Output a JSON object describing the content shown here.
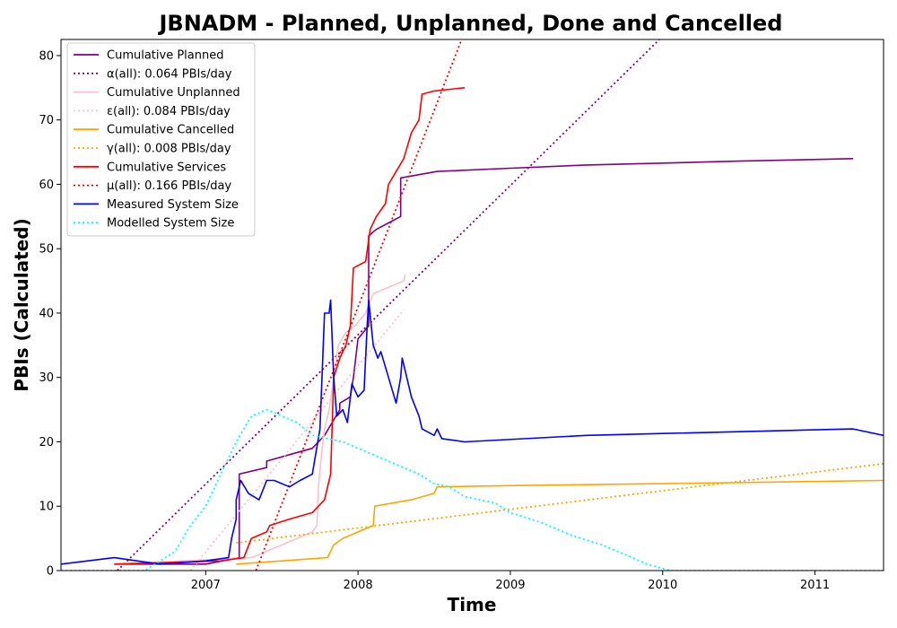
{
  "chart_data": {
    "type": "line",
    "title": "JBNADM - Planned, Unplanned, Done  and Cancelled",
    "xlabel": "Time",
    "ylabel": "PBIs (Calculated)",
    "xlim": [
      2006.05,
      2011.45
    ],
    "ylim": [
      0,
      82.5
    ],
    "x_ticks": [
      2007,
      2008,
      2009,
      2010,
      2011
    ],
    "x_tick_labels": [
      "2007",
      "2008",
      "2009",
      "2010",
      "2011"
    ],
    "y_ticks": [
      0,
      10,
      20,
      30,
      40,
      50,
      60,
      70,
      80
    ],
    "y_tick_labels": [
      "0",
      "10",
      "20",
      "30",
      "40",
      "50",
      "60",
      "70",
      "80"
    ],
    "grid": false,
    "legend_position": "top-left",
    "series": [
      {
        "name": "Cumulative Planned",
        "color": "#800080",
        "style": "solid",
        "points": [
          [
            2006.4,
            1
          ],
          [
            2007.0,
            1
          ],
          [
            2007.22,
            2
          ],
          [
            2007.22,
            15
          ],
          [
            2007.4,
            16
          ],
          [
            2007.4,
            17
          ],
          [
            2007.55,
            18
          ],
          [
            2007.7,
            19
          ],
          [
            2007.78,
            21
          ],
          [
            2007.83,
            23
          ],
          [
            2007.88,
            25
          ],
          [
            2007.88,
            26
          ],
          [
            2007.95,
            27
          ],
          [
            2007.97,
            30
          ],
          [
            2008.0,
            36
          ],
          [
            2008.07,
            38
          ],
          [
            2008.07,
            52
          ],
          [
            2008.12,
            53
          ],
          [
            2008.2,
            54
          ],
          [
            2008.28,
            55
          ],
          [
            2008.28,
            61
          ],
          [
            2008.4,
            61.5
          ],
          [
            2008.52,
            62
          ],
          [
            2009.0,
            62.5
          ],
          [
            2009.5,
            63
          ],
          [
            2010.0,
            63.3
          ],
          [
            2010.5,
            63.6
          ],
          [
            2011.25,
            64
          ]
        ]
      },
      {
        "name": "α(all): 0.064 PBIs/day",
        "color": "#800080",
        "style": "dotted",
        "points": [
          [
            2006.42,
            0
          ],
          [
            2010.0,
            83
          ]
        ]
      },
      {
        "name": "Cumulative Unplanned",
        "color": "#ffc0cb",
        "style": "solid",
        "points": [
          [
            2006.4,
            1
          ],
          [
            2007.3,
            2
          ],
          [
            2007.6,
            5
          ],
          [
            2007.7,
            6
          ],
          [
            2007.73,
            7
          ],
          [
            2007.74,
            13
          ],
          [
            2007.76,
            18
          ],
          [
            2007.78,
            22
          ],
          [
            2007.81,
            25
          ],
          [
            2007.84,
            30
          ],
          [
            2007.87,
            35
          ],
          [
            2007.92,
            37
          ],
          [
            2007.98,
            38
          ],
          [
            2008.05,
            40
          ],
          [
            2008.1,
            43
          ],
          [
            2008.2,
            44
          ],
          [
            2008.3,
            45
          ],
          [
            2008.31,
            46
          ]
        ]
      },
      {
        "name": "ε(all): 0.084 PBIs/day",
        "color": "#ffc0cb",
        "style": "dotted",
        "points": [
          [
            2006.9,
            0
          ],
          [
            2008.3,
            40.5
          ]
        ]
      },
      {
        "name": "Cumulative Cancelled",
        "color": "#ffa500",
        "style": "solid",
        "points": [
          [
            2007.2,
            1
          ],
          [
            2007.8,
            2
          ],
          [
            2007.82,
            3
          ],
          [
            2007.84,
            4
          ],
          [
            2007.9,
            5
          ],
          [
            2008.0,
            6
          ],
          [
            2008.1,
            7
          ],
          [
            2008.11,
            10
          ],
          [
            2008.35,
            11
          ],
          [
            2008.5,
            12
          ],
          [
            2008.52,
            13
          ],
          [
            2009.0,
            13.2
          ],
          [
            2010.0,
            13.5
          ],
          [
            2011.45,
            14
          ]
        ]
      },
      {
        "name": "γ(all): 0.008 PBIs/day",
        "color": "#ffa500",
        "style": "dotted",
        "points": [
          [
            2007.2,
            4.3
          ],
          [
            2011.45,
            16.6
          ]
        ]
      },
      {
        "name": "Cumulative Services",
        "color": "#ff0000",
        "style": "solid",
        "points": [
          [
            2006.4,
            1
          ],
          [
            2007.1,
            1.5
          ],
          [
            2007.25,
            2
          ],
          [
            2007.3,
            5
          ],
          [
            2007.4,
            6
          ],
          [
            2007.42,
            7
          ],
          [
            2007.55,
            8
          ],
          [
            2007.7,
            9
          ],
          [
            2007.78,
            11
          ],
          [
            2007.8,
            13
          ],
          [
            2007.82,
            15
          ],
          [
            2007.84,
            30
          ],
          [
            2007.88,
            33
          ],
          [
            2007.92,
            35
          ],
          [
            2007.95,
            38
          ],
          [
            2007.97,
            47
          ],
          [
            2008.05,
            48
          ],
          [
            2008.08,
            53
          ],
          [
            2008.12,
            55
          ],
          [
            2008.18,
            57
          ],
          [
            2008.2,
            60
          ],
          [
            2008.3,
            64
          ],
          [
            2008.35,
            68
          ],
          [
            2008.4,
            70
          ],
          [
            2008.42,
            74
          ],
          [
            2008.5,
            74.5
          ],
          [
            2008.7,
            75
          ]
        ]
      },
      {
        "name": "μ(all): 0.166 PBIs/day",
        "color": "#ff0000",
        "style": "dotted",
        "points": [
          [
            2007.33,
            0
          ],
          [
            2008.68,
            82.5
          ]
        ]
      },
      {
        "name": "Measured System Size",
        "color": "#0000ff",
        "style": "solid",
        "points": [
          [
            2006.05,
            1
          ],
          [
            2006.4,
            2
          ],
          [
            2006.7,
            1
          ],
          [
            2007.0,
            1.5
          ],
          [
            2007.15,
            2
          ],
          [
            2007.17,
            5
          ],
          [
            2007.2,
            8
          ],
          [
            2007.2,
            11
          ],
          [
            2007.23,
            14
          ],
          [
            2007.28,
            12
          ],
          [
            2007.35,
            11
          ],
          [
            2007.4,
            14
          ],
          [
            2007.45,
            14
          ],
          [
            2007.55,
            13
          ],
          [
            2007.62,
            14
          ],
          [
            2007.7,
            15
          ],
          [
            2007.75,
            22
          ],
          [
            2007.78,
            40
          ],
          [
            2007.81,
            40
          ],
          [
            2007.82,
            42
          ],
          [
            2007.84,
            30
          ],
          [
            2007.86,
            24
          ],
          [
            2007.9,
            25
          ],
          [
            2007.93,
            23
          ],
          [
            2007.96,
            29
          ],
          [
            2008.0,
            27
          ],
          [
            2008.04,
            28
          ],
          [
            2008.06,
            38
          ],
          [
            2008.07,
            42
          ],
          [
            2008.1,
            35
          ],
          [
            2008.13,
            33
          ],
          [
            2008.15,
            34
          ],
          [
            2008.2,
            30
          ],
          [
            2008.25,
            26
          ],
          [
            2008.28,
            30
          ],
          [
            2008.29,
            33
          ],
          [
            2008.3,
            32
          ],
          [
            2008.35,
            27
          ],
          [
            2008.4,
            24
          ],
          [
            2008.42,
            22
          ],
          [
            2008.5,
            21
          ],
          [
            2008.52,
            22
          ],
          [
            2008.55,
            20.5
          ],
          [
            2008.7,
            20
          ],
          [
            2009.5,
            21
          ],
          [
            2010.0,
            21.3
          ],
          [
            2011.25,
            22
          ],
          [
            2011.45,
            21
          ]
        ]
      },
      {
        "name": "Modelled System Size",
        "color": "#00ffff",
        "style": "dotted",
        "points": [
          [
            2006.05,
            0
          ],
          [
            2006.5,
            0
          ],
          [
            2006.6,
            0
          ],
          [
            2006.8,
            3
          ],
          [
            2006.9,
            7
          ],
          [
            2007.0,
            10
          ],
          [
            2007.1,
            15
          ],
          [
            2007.2,
            20
          ],
          [
            2007.3,
            24
          ],
          [
            2007.4,
            25
          ],
          [
            2007.5,
            24
          ],
          [
            2007.6,
            23
          ],
          [
            2007.7,
            21
          ],
          [
            2007.8,
            20.5
          ],
          [
            2007.9,
            20
          ],
          [
            2008.0,
            19
          ],
          [
            2008.1,
            18
          ],
          [
            2008.2,
            17
          ],
          [
            2008.3,
            16
          ],
          [
            2008.4,
            15
          ],
          [
            2008.5,
            13.5
          ],
          [
            2008.6,
            13
          ],
          [
            2008.7,
            11.5
          ],
          [
            2008.8,
            11
          ],
          [
            2008.9,
            10.5
          ],
          [
            2009.0,
            9
          ],
          [
            2009.2,
            7.5
          ],
          [
            2009.4,
            5.5
          ],
          [
            2009.6,
            4
          ],
          [
            2009.8,
            2
          ],
          [
            2009.9,
            1
          ],
          [
            2010.0,
            0.3
          ],
          [
            2010.05,
            0
          ],
          [
            2011.45,
            0
          ]
        ]
      }
    ]
  }
}
